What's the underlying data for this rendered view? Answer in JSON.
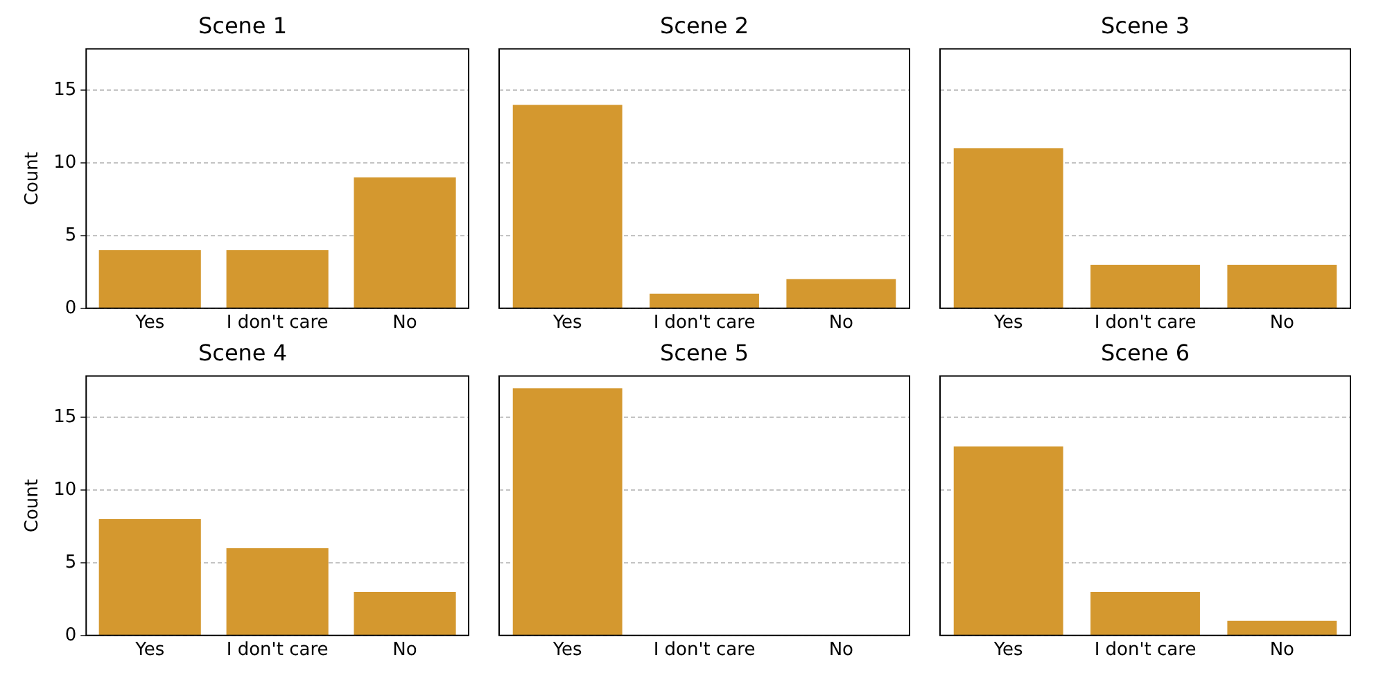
{
  "chart_data": [
    {
      "type": "bar",
      "title": "Scene 1",
      "ylabel": "Count",
      "categories": [
        "Yes",
        "I don't care",
        "No"
      ],
      "values": [
        4,
        4,
        9
      ],
      "color": "#d4982f",
      "ylim": [
        0,
        17.85
      ],
      "yticks": [
        0,
        5,
        10,
        15
      ],
      "grid": "y"
    },
    {
      "type": "bar",
      "title": "Scene 2",
      "categories": [
        "Yes",
        "I don't care",
        "No"
      ],
      "values": [
        14,
        1,
        2
      ],
      "color": "#d4982f",
      "ylim": [
        0,
        17.85
      ],
      "yticks": [
        0,
        5,
        10,
        15
      ],
      "grid": "y",
      "tick_labels": "x"
    },
    {
      "type": "bar",
      "title": "Scene 3",
      "categories": [
        "Yes",
        "I don't care",
        "No"
      ],
      "values": [
        11,
        3,
        3
      ],
      "color": "#d4982f",
      "ylim": [
        0,
        17.85
      ],
      "yticks": [
        0,
        5,
        10,
        15
      ],
      "grid": "y",
      "tick_labels": "x"
    },
    {
      "type": "bar",
      "title": "Scene 4",
      "ylabel": "Count",
      "categories": [
        "Yes",
        "I don't care",
        "No"
      ],
      "values": [
        8,
        6,
        3
      ],
      "color": "#d4982f",
      "ylim": [
        0,
        17.85
      ],
      "yticks": [
        0,
        5,
        10,
        15
      ],
      "grid": "y"
    },
    {
      "type": "bar",
      "title": "Scene 5",
      "categories": [
        "Yes",
        "I don't care",
        "No"
      ],
      "values": [
        17,
        0,
        0
      ],
      "color": "#d4982f",
      "ylim": [
        0,
        17.85
      ],
      "yticks": [
        0,
        5,
        10,
        15
      ],
      "grid": "y",
      "tick_labels": "x"
    },
    {
      "type": "bar",
      "title": "Scene 6",
      "categories": [
        "Yes",
        "I don't care",
        "No"
      ],
      "values": [
        13,
        3,
        1
      ],
      "color": "#d4982f",
      "ylim": [
        0,
        17.85
      ],
      "yticks": [
        0,
        5,
        10,
        15
      ],
      "grid": "y",
      "tick_labels": "x"
    }
  ]
}
